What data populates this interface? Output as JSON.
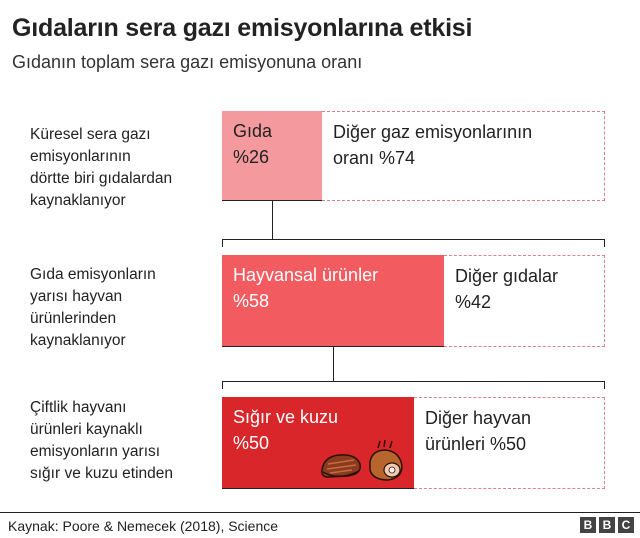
{
  "title": "Gıdaların sera gazı emisyonlarına etkisi",
  "subtitle": "Gıdanın toplam sera gazı emisyonuna oranı",
  "chart_data": {
    "type": "bar",
    "levels": [
      {
        "label": "Küresel sera gazı\nemisyonlarının\ndörtte biri gıdalardan\nkaynaklanıyor",
        "highlight": {
          "label": "Gıda",
          "value_text": "%26",
          "value": 26,
          "color": "#f4999e"
        },
        "rest": {
          "label": "Diğer gaz emisyonlarının\noranı",
          "value_text": "%74",
          "value": 74
        }
      },
      {
        "label": "Gıda emisyonların\nyarısı hayvan\nürünlerinden\nkaynaklanıyor",
        "highlight": {
          "label": "Hayvansal ürünler",
          "value_text": "%58",
          "value": 58,
          "color": "#f25c60"
        },
        "rest": {
          "label": "Diğer gıdalar",
          "value_text": "%42",
          "value": 42
        }
      },
      {
        "label": "Çiftlik hayvanı\nürünleri kaynaklı\nemisyonların yarısı\nsığır ve kuzu etinden",
        "highlight": {
          "label": "Sığır ve kuzu",
          "value_text": "%50",
          "value": 50,
          "color": "#d9262b"
        },
        "rest": {
          "label": "Diğer hayvan\nürünleri",
          "value_text": "%50",
          "value": 50
        }
      }
    ]
  },
  "icons": [
    "steak-icon",
    "ham-icon"
  ],
  "source": "Kaynak: Poore & Nemecek (2018), Science",
  "logo": [
    "B",
    "B",
    "C"
  ]
}
